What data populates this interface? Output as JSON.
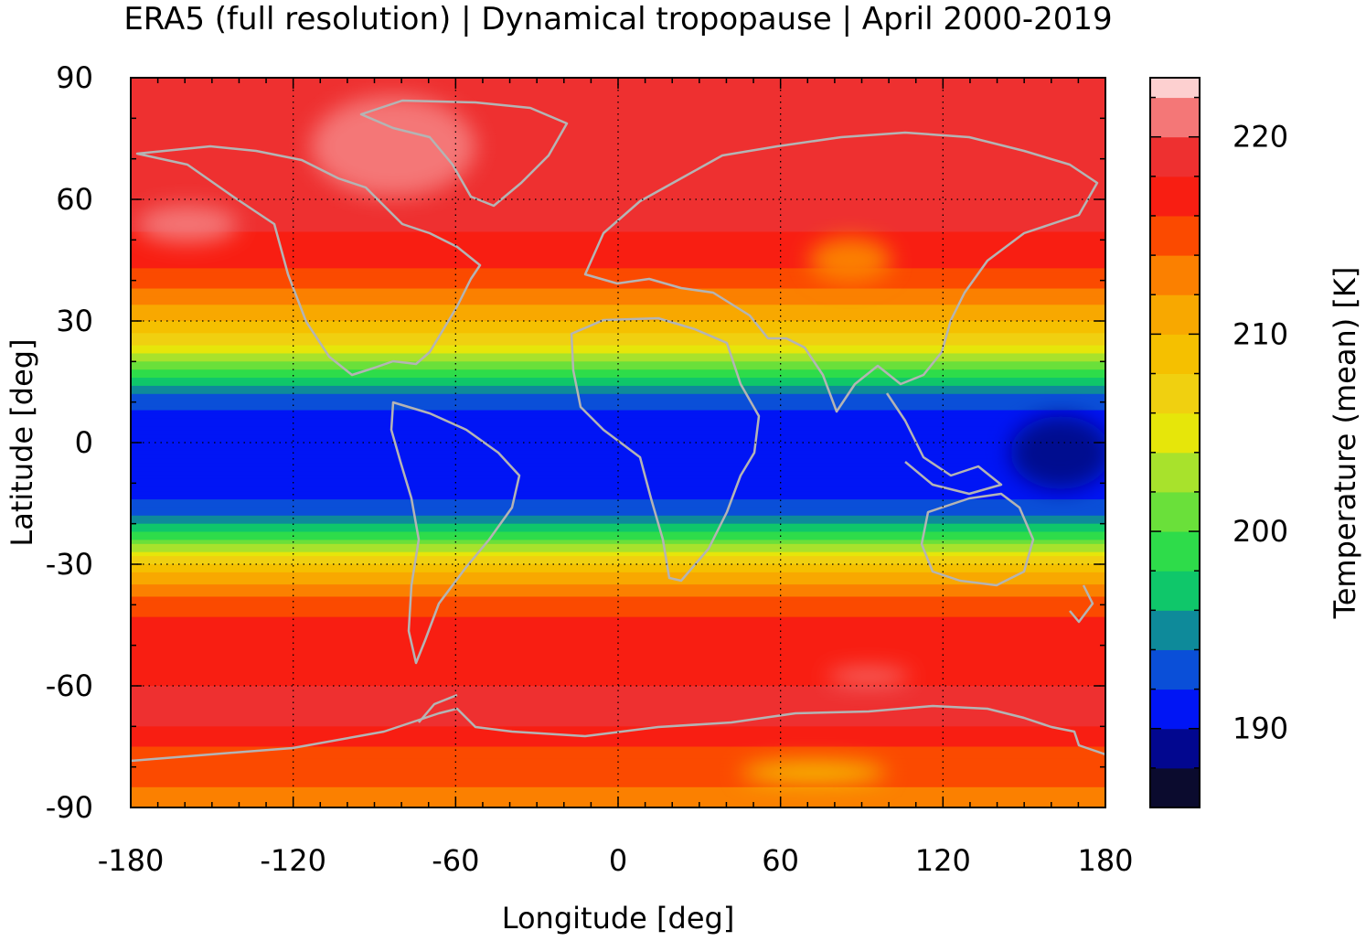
{
  "title": "ERA5 (full resolution) | Dynamical tropopause | April 2000-2019",
  "chart_data": {
    "type": "heatmap",
    "title": "ERA5 (full resolution) | Dynamical tropopause | April 2000-2019",
    "xlabel": "Longitude [deg]",
    "ylabel": "Latitude [deg]",
    "xlim": [
      -180,
      180
    ],
    "ylim": [
      -90,
      90
    ],
    "xticks": [
      "-180",
      "-120",
      "-60",
      "0",
      "60",
      "120",
      "180"
    ],
    "yticks": [
      "90",
      "60",
      "30",
      "0",
      "-30",
      "-60",
      "-90"
    ],
    "grid": true,
    "colorbar": {
      "label": "Temperature (mean) [K]",
      "range": [
        186,
        223
      ],
      "ticks": [
        "220",
        "210",
        "200",
        "190"
      ],
      "levels": [
        186,
        188,
        190,
        192,
        194,
        196,
        198,
        200,
        202,
        204,
        206,
        208,
        210,
        212,
        214,
        216,
        218,
        220,
        222,
        223
      ],
      "colors": [
        "#0b0b2e",
        "#02078f",
        "#0015f5",
        "#0a4fd8",
        "#0e8a9a",
        "#0fc76a",
        "#2edc4a",
        "#6ae03a",
        "#a8e22c",
        "#e6e60a",
        "#f0d010",
        "#f5c000",
        "#f8a800",
        "#fb8000",
        "#fb4a00",
        "#f81e12",
        "#ee3030",
        "#f47777",
        "#fdd0d0"
      ]
    },
    "zonal_mean_profile": {
      "lat": [
        90,
        75,
        60,
        45,
        38,
        30,
        24,
        18,
        12,
        6,
        0,
        -6,
        -12,
        -18,
        -24,
        -30,
        -36,
        -45,
        -60,
        -70,
        -75,
        -85,
        -90
      ],
      "temperature": [
        219,
        220,
        219,
        217,
        214,
        210,
        206,
        200,
        194,
        191,
        190,
        190,
        191,
        194,
        200,
        208,
        213,
        217,
        218,
        218,
        216,
        214,
        213
      ]
    },
    "map_features": [
      "coastlines"
    ]
  },
  "colors": {
    "coastline": "#b4b4b4",
    "grid": "#000000"
  }
}
